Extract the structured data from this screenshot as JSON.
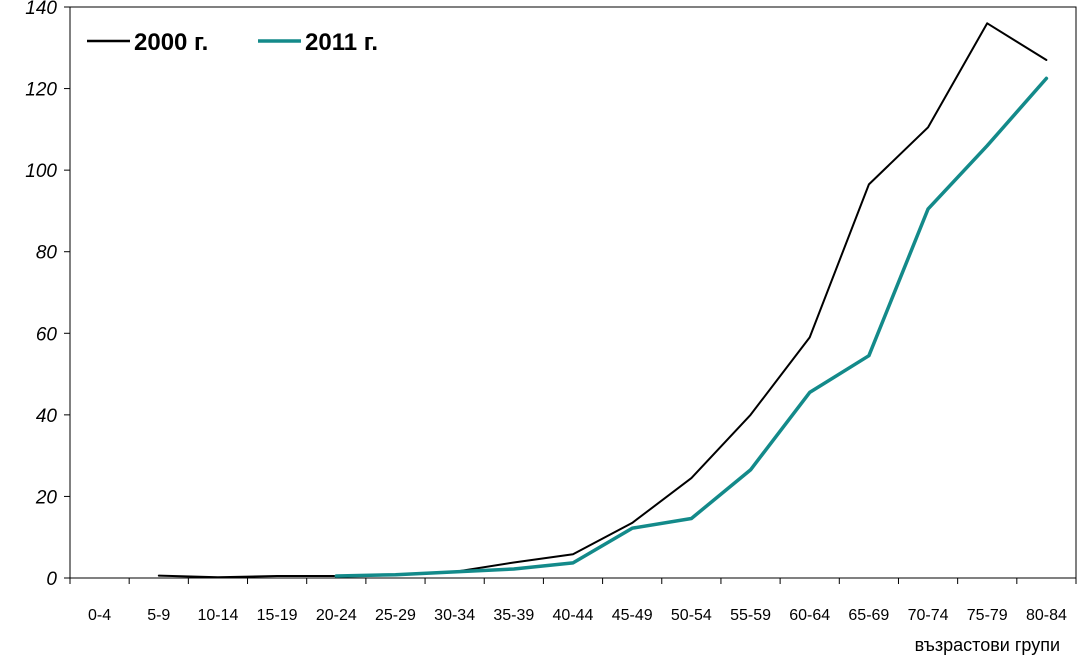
{
  "chart_data": {
    "type": "line",
    "categories": [
      "0-4",
      "5-9",
      "10-14",
      "15-19",
      "20-24",
      "25-29",
      "30-34",
      "35-39",
      "40-44",
      "45-49",
      "50-54",
      "55-59",
      "60-64",
      "65-69",
      "70-74",
      "75-79",
      "80-84"
    ],
    "series": [
      {
        "name": "2000 г.",
        "color": "#000000",
        "values": [
          null,
          0.6,
          0.2,
          0.5,
          0.5,
          null,
          1.5,
          3.8,
          5.8,
          13.5,
          24.5,
          40,
          59,
          96.5,
          110.5,
          136,
          127
        ]
      },
      {
        "name": "2011 г.",
        "color": "#138a8a",
        "values": [
          null,
          null,
          null,
          null,
          0.5,
          0.8,
          1.5,
          2.2,
          3.7,
          12.2,
          14.6,
          26.5,
          45.5,
          54.5,
          90.5,
          106,
          122.5
        ]
      }
    ],
    "xlabel": "възрастови групи",
    "ylabel": "",
    "ylim": [
      0,
      140
    ],
    "yticks": [
      0,
      20,
      40,
      60,
      80,
      100,
      120,
      140
    ],
    "grid": false,
    "legend_position": "top-left"
  }
}
